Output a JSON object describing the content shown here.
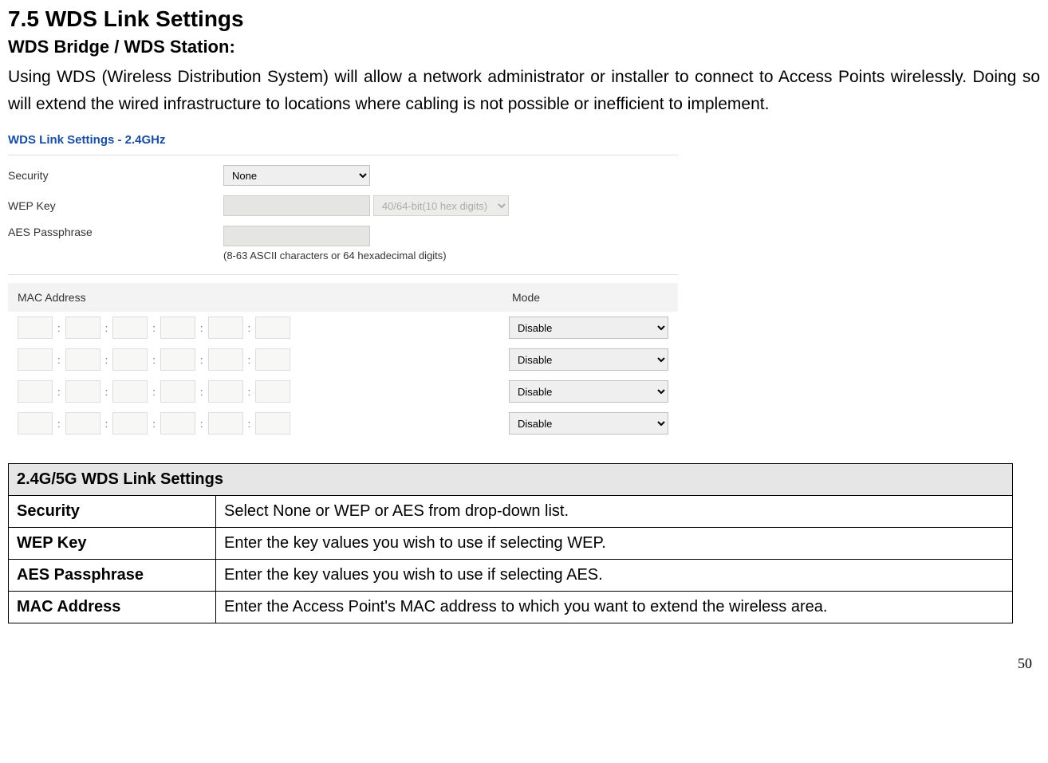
{
  "heading": {
    "section": "7.5   WDS Link Settings",
    "subtitle": "WDS Bridge / WDS Station:",
    "body": "Using WDS (Wireless Distribution System) will allow a network administrator or installer to connect to Access Points wirelessly. Doing so will extend the wired infrastructure to locations where cabling is not possible or inefficient to implement."
  },
  "panel": {
    "title": "WDS Link Settings - 2.4GHz",
    "rows": {
      "security": {
        "label": "Security",
        "value": "None"
      },
      "wep": {
        "label": "WEP Key",
        "value": "",
        "bits_value": "40/64-bit(10 hex digits)"
      },
      "aes": {
        "label": "AES Passphrase",
        "value": "",
        "hint": "(8-63 ASCII characters or 64 hexadecimal digits)"
      }
    },
    "mac_header": {
      "mac": "MAC Address",
      "mode": "Mode"
    },
    "mac_rows_count": 4,
    "mode_value": "Disable"
  },
  "ref_table": {
    "title": "2.4G/5G WDS Link Settings",
    "rows": [
      {
        "key": "Security",
        "val": "Select None or WEP or AES from drop-down list."
      },
      {
        "key": "WEP Key",
        "val": "Enter the key values you wish to use if selecting WEP."
      },
      {
        "key": "AES Passphrase",
        "val": "Enter the key values you wish to use if selecting AES."
      },
      {
        "key": "MAC Address",
        "val": "Enter the Access Point's MAC address to which you want to extend the wireless area."
      }
    ]
  },
  "page_number": "50"
}
